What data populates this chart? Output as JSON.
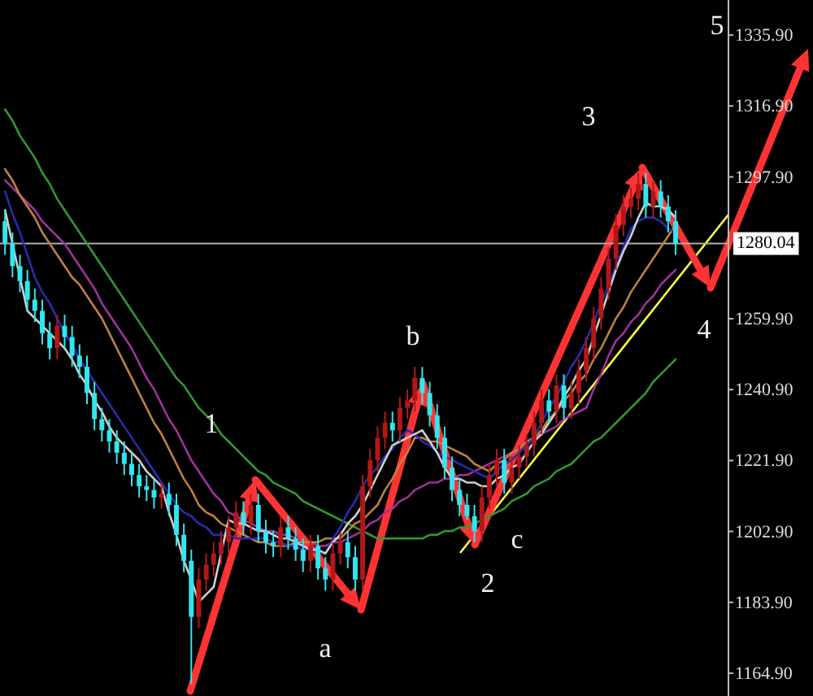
{
  "chart_data": {
    "type": "candlestick",
    "categories": [
      null,
      null,
      null,
      null,
      null,
      null,
      null,
      null,
      null,
      null,
      null,
      null,
      null,
      null,
      null,
      null,
      null,
      null,
      null,
      null,
      null,
      null,
      null,
      null,
      null,
      null,
      null,
      null,
      null,
      null,
      null,
      null,
      null,
      null,
      null,
      null,
      null,
      null,
      null,
      null,
      null,
      null,
      null,
      null,
      null,
      null,
      null,
      null,
      null,
      null,
      null,
      null,
      null,
      null,
      null,
      null,
      null,
      null,
      null,
      null,
      null,
      null,
      null,
      null,
      null,
      null,
      null,
      null,
      null,
      null,
      null,
      null,
      null,
      null,
      null,
      null,
      null,
      null,
      null,
      null,
      null,
      null,
      null,
      null,
      null,
      null,
      null,
      null,
      null,
      null,
      null
    ],
    "ohlc": [
      [
        1286,
        1289,
        1277,
        1280
      ],
      [
        1280,
        1283,
        1271,
        1274
      ],
      [
        1274,
        1277,
        1267,
        1270
      ],
      [
        1270,
        1273,
        1262,
        1265
      ],
      [
        1265,
        1268,
        1259,
        1262
      ],
      [
        1262,
        1265,
        1253,
        1256
      ],
      [
        1256,
        1259,
        1249,
        1252
      ],
      [
        1252,
        1261,
        1249,
        1258
      ],
      [
        1258,
        1261,
        1252,
        1255
      ],
      [
        1255,
        1258,
        1247,
        1250
      ],
      [
        1250,
        1253,
        1244,
        1247
      ],
      [
        1247,
        1250,
        1237,
        1240
      ],
      [
        1240,
        1243,
        1230,
        1233
      ],
      [
        1233,
        1236,
        1227,
        1230
      ],
      [
        1230,
        1233,
        1224,
        1227
      ],
      [
        1227,
        1230,
        1221,
        1224
      ],
      [
        1224,
        1227,
        1218,
        1221
      ],
      [
        1221,
        1224,
        1215,
        1218
      ],
      [
        1218,
        1221,
        1212,
        1215
      ],
      [
        1215,
        1218,
        1211,
        1214
      ],
      [
        1214,
        1217,
        1209,
        1212
      ],
      [
        1212,
        1216,
        1209,
        1213
      ],
      [
        1213,
        1216,
        1207,
        1210
      ],
      [
        1210,
        1213,
        1199,
        1202
      ],
      [
        1202,
        1205,
        1192,
        1195
      ],
      [
        1195,
        1198,
        1162,
        1180
      ],
      [
        1180,
        1193,
        1177,
        1190
      ],
      [
        1190,
        1197,
        1187,
        1194
      ],
      [
        1194,
        1200,
        1191,
        1197
      ],
      [
        1197,
        1203,
        1194,
        1200
      ],
      [
        1200,
        1207,
        1197,
        1204
      ],
      [
        1204,
        1211,
        1201,
        1208
      ],
      [
        1208,
        1211,
        1202,
        1205
      ],
      [
        1205,
        1213,
        1202,
        1210
      ],
      [
        1210,
        1213,
        1200,
        1203
      ],
      [
        1203,
        1206,
        1197,
        1200
      ],
      [
        1200,
        1203,
        1196,
        1199
      ],
      [
        1199,
        1207,
        1196,
        1204
      ],
      [
        1204,
        1207,
        1198,
        1201
      ],
      [
        1201,
        1204,
        1195,
        1198
      ],
      [
        1198,
        1201,
        1192,
        1195
      ],
      [
        1195,
        1202,
        1192,
        1199
      ],
      [
        1199,
        1202,
        1190,
        1193
      ],
      [
        1193,
        1196,
        1187,
        1190
      ],
      [
        1190,
        1200,
        1187,
        1197
      ],
      [
        1197,
        1203,
        1194,
        1200
      ],
      [
        1200,
        1203,
        1193,
        1196
      ],
      [
        1196,
        1199,
        1187,
        1190
      ],
      [
        1190,
        1218,
        1187,
        1215
      ],
      [
        1215,
        1225,
        1212,
        1222
      ],
      [
        1222,
        1231,
        1219,
        1228
      ],
      [
        1228,
        1235,
        1225,
        1232
      ],
      [
        1232,
        1235,
        1227,
        1230
      ],
      [
        1230,
        1239,
        1227,
        1236
      ],
      [
        1236,
        1241,
        1233,
        1238
      ],
      [
        1238,
        1247,
        1235,
        1244
      ],
      [
        1244,
        1247,
        1237,
        1240
      ],
      [
        1240,
        1243,
        1231,
        1234
      ],
      [
        1234,
        1237,
        1225,
        1228
      ],
      [
        1228,
        1231,
        1217,
        1220
      ],
      [
        1220,
        1223,
        1211,
        1214
      ],
      [
        1214,
        1217,
        1207,
        1210
      ],
      [
        1210,
        1213,
        1206,
        1207
      ],
      [
        1207,
        1210,
        1200,
        1203
      ],
      [
        1203,
        1215,
        1200,
        1212
      ],
      [
        1212,
        1221,
        1209,
        1218
      ],
      [
        1218,
        1225,
        1215,
        1222
      ],
      [
        1222,
        1225,
        1213,
        1216
      ],
      [
        1216,
        1223,
        1213,
        1220
      ],
      [
        1220,
        1226,
        1217,
        1223
      ],
      [
        1223,
        1229,
        1220,
        1226
      ],
      [
        1226,
        1235,
        1223,
        1232
      ],
      [
        1232,
        1241,
        1229,
        1238
      ],
      [
        1238,
        1241,
        1232,
        1235
      ],
      [
        1235,
        1245,
        1232,
        1242
      ],
      [
        1242,
        1245,
        1233,
        1236
      ],
      [
        1236,
        1243,
        1233,
        1240
      ],
      [
        1240,
        1249,
        1237,
        1246
      ],
      [
        1246,
        1255,
        1243,
        1252
      ],
      [
        1252,
        1263,
        1249,
        1260
      ],
      [
        1260,
        1271,
        1257,
        1268
      ],
      [
        1268,
        1279,
        1265,
        1276
      ],
      [
        1276,
        1288,
        1273,
        1285
      ],
      [
        1285,
        1293,
        1282,
        1290
      ],
      [
        1290,
        1295,
        1287,
        1292
      ],
      [
        1292,
        1299,
        1289,
        1296
      ],
      [
        1296,
        1299,
        1287,
        1290
      ],
      [
        1290,
        1297,
        1287,
        1294
      ],
      [
        1294,
        1297,
        1287,
        1290
      ],
      [
        1290,
        1293,
        1283,
        1286
      ],
      [
        1286,
        1289,
        1277,
        1280
      ]
    ],
    "colors": [
      "#33e6ee",
      "#33e6ee",
      "#33e6ee",
      "#33e6ee",
      "#33e6ee",
      "#33e6ee",
      "#33e6ee",
      "#b01818",
      "#33e6ee",
      "#33e6ee",
      "#33e6ee",
      "#33e6ee",
      "#33e6ee",
      "#33e6ee",
      "#33e6ee",
      "#33e6ee",
      "#33e6ee",
      "#33e6ee",
      "#33e6ee",
      "#33e6ee",
      "#33e6ee",
      "#b01818",
      "#33e6ee",
      "#33e6ee",
      "#33e6ee",
      "#33e6ee",
      "#b01818",
      "#b01818",
      "#b01818",
      "#b01818",
      "#b01818",
      "#b01818",
      "#33e6ee",
      "#b01818",
      "#33e6ee",
      "#33e6ee",
      "#33e6ee",
      "#b01818",
      "#33e6ee",
      "#33e6ee",
      "#33e6ee",
      "#b01818",
      "#33e6ee",
      "#33e6ee",
      "#b01818",
      "#b01818",
      "#33e6ee",
      "#33e6ee",
      "#b01818",
      "#b01818",
      "#b01818",
      "#b01818",
      "#33e6ee",
      "#b01818",
      "#b01818",
      "#b01818",
      "#33e6ee",
      "#33e6ee",
      "#33e6ee",
      "#33e6ee",
      "#33e6ee",
      "#33e6ee",
      "#33e6ee",
      "#33e6ee",
      "#b01818",
      "#b01818",
      "#b01818",
      "#33e6ee",
      "#b01818",
      "#b01818",
      "#b01818",
      "#b01818",
      "#b01818",
      "#33e6ee",
      "#b01818",
      "#33e6ee",
      "#b01818",
      "#b01818",
      "#b01818",
      "#b01818",
      "#b01818",
      "#b01818",
      "#b01818",
      "#b01818",
      "#b01818",
      "#b01818",
      "#33e6ee",
      "#b01818",
      "#33e6ee",
      "#33e6ee",
      "#33e6ee"
    ],
    "series": [
      {
        "type": "line",
        "color": "#2e9a2e",
        "values": [
          1316,
          1313,
          1309,
          1306,
          1303,
          1299,
          1296,
          1292,
          1289,
          1286,
          1283,
          1280,
          1277,
          1274,
          1271,
          1268,
          1265,
          1262,
          1259,
          1256,
          1253,
          1250,
          1247,
          1244,
          1242,
          1239,
          1236,
          1234,
          1232,
          1229,
          1227,
          1225,
          1223,
          1221,
          1219,
          1218,
          1216,
          1215,
          1214,
          1213,
          1211,
          1210,
          1209,
          1208,
          1207,
          1206,
          1205,
          1204,
          1203,
          1202,
          1201,
          1201,
          1201,
          1201,
          1201,
          1201,
          1201,
          1202,
          1202,
          1203,
          1203,
          1204,
          1204,
          1205,
          1206,
          1207,
          1208,
          1209,
          1211,
          1212,
          1213,
          1215,
          1216,
          1217,
          1219,
          1220,
          1221,
          1223,
          1225,
          1227,
          1228,
          1230,
          1232,
          1234,
          1236,
          1238,
          1240,
          1243,
          1245,
          1247,
          1249
        ]
      },
      {
        "type": "line",
        "color": "#a030a0",
        "values": [
          1297,
          1295,
          1293,
          1291,
          1289,
          1286,
          1284,
          1282,
          1280,
          1277,
          1274,
          1271,
          1268,
          1264,
          1261,
          1258,
          1255,
          1252,
          1248,
          1244,
          1241,
          1237,
          1233,
          1230,
          1226,
          1222,
          1219,
          1216,
          1213,
          1211,
          1208,
          1207,
          1206,
          1205,
          1204,
          1203,
          1203,
          1202,
          1202,
          1201,
          1200,
          1200,
          1199,
          1199,
          1200,
          1200,
          1201,
          1202,
          1203,
          1205,
          1206,
          1208,
          1209,
          1211,
          1212,
          1214,
          1215,
          1216,
          1216,
          1217,
          1217,
          1218,
          1218,
          1219,
          1220,
          1221,
          1222,
          1223,
          1224,
          1225,
          1226,
          1228,
          1229,
          1230,
          1231,
          1233,
          1234,
          1235,
          1236,
          1241,
          1245,
          1250,
          1254,
          1256,
          1259,
          1261,
          1264,
          1266,
          1269,
          1271,
          1273
        ]
      },
      {
        "type": "line",
        "color": "#c08040",
        "values": [
          1300,
          1297,
          1293,
          1290,
          1287,
          1283,
          1280,
          1277,
          1274,
          1271,
          1269,
          1266,
          1263,
          1260,
          1256,
          1252,
          1248,
          1244,
          1240,
          1236,
          1232,
          1229,
          1225,
          1221,
          1217,
          1214,
          1210,
          1208,
          1207,
          1205,
          1204,
          1203,
          1202,
          1201,
          1200,
          1200,
          1199,
          1199,
          1199,
          1200,
          1200,
          1200,
          1200,
          1201,
          1201,
          1201,
          1203,
          1205,
          1206,
          1208,
          1210,
          1214,
          1217,
          1221,
          1224,
          1228,
          1228,
          1227,
          1227,
          1226,
          1225,
          1224,
          1223,
          1221,
          1220,
          1219,
          1221,
          1222,
          1224,
          1225,
          1227,
          1228,
          1230,
          1233,
          1235,
          1238,
          1240,
          1243,
          1245,
          1249,
          1252,
          1256,
          1260,
          1263,
          1267,
          1270,
          1273,
          1276,
          1279,
          1282,
          1285
        ]
      },
      {
        "type": "line",
        "color": "#2a2ab0",
        "values": [
          1294,
          1288,
          1283,
          1277,
          1271,
          1267,
          1264,
          1260,
          1256,
          1253,
          1249,
          1246,
          1243,
          1240,
          1237,
          1234,
          1231,
          1228,
          1225,
          1222,
          1219,
          1216,
          1213,
          1210,
          1208,
          1207,
          1205,
          1204,
          1202,
          1202,
          1202,
          1201,
          1201,
          1201,
          1201,
          1201,
          1200,
          1200,
          1199,
          1199,
          1198,
          1198,
          1197,
          1197,
          1201,
          1204,
          1208,
          1211,
          1215,
          1218,
          1220,
          1223,
          1225,
          1228,
          1230,
          1229,
          1227,
          1226,
          1224,
          1223,
          1222,
          1221,
          1220,
          1219,
          1218,
          1217,
          1219,
          1221,
          1222,
          1224,
          1226,
          1228,
          1232,
          1236,
          1239,
          1243,
          1247,
          1250,
          1254,
          1259,
          1264,
          1269,
          1274,
          1279,
          1284,
          1286,
          1287,
          1287,
          1286,
          1284,
          1283
        ]
      },
      {
        "type": "line",
        "color": "#d0d0d0",
        "values": [
          1289,
          1280,
          1271,
          1262,
          1260,
          1258,
          1256,
          1254,
          1252,
          1249,
          1245,
          1242,
          1238,
          1235,
          1231,
          1228,
          1226,
          1224,
          1222,
          1219,
          1217,
          1215,
          1208,
          1202,
          1195,
          1190,
          1184,
          1186,
          1188,
          1197,
          1206,
          1205,
          1205,
          1204,
          1203,
          1203,
          1202,
          1201,
          1201,
          1200,
          1199,
          1198,
          1198,
          1197,
          1200,
          1202,
          1205,
          1207,
          1210,
          1214,
          1218,
          1222,
          1226,
          1227,
          1228,
          1229,
          1230,
          1227,
          1224,
          1220,
          1217,
          1217,
          1216,
          1216,
          1215,
          1215,
          1217,
          1218,
          1220,
          1221,
          1224,
          1227,
          1229,
          1232,
          1235,
          1239,
          1242,
          1246,
          1249,
          1255,
          1261,
          1267,
          1273,
          1278,
          1282,
          1287,
          1291,
          1290,
          1290,
          1289,
          1287
        ]
      }
    ],
    "annotations": [
      "1",
      "a",
      "b",
      "2",
      "c",
      "3",
      "4",
      "5"
    ],
    "ref_lines": [
      {
        "axis": "y",
        "value": 1280.04,
        "label": "1280.04",
        "color": "#b0b0b0"
      }
    ],
    "ylim": [
      1158.8,
      1345.3
    ],
    "yticks": [
      {
        "value": 1164.9,
        "label": "1164.90"
      },
      {
        "value": 1183.9,
        "label": "1183.90"
      },
      {
        "value": 1202.9,
        "label": "1202.90"
      },
      {
        "value": 1221.9,
        "label": "1221.90"
      },
      {
        "value": 1240.9,
        "label": "1240.90"
      },
      {
        "value": 1259.9,
        "label": "1259.90"
      },
      {
        "value": 1297.9,
        "label": "1297.90"
      },
      {
        "value": 1316.9,
        "label": "1316.90"
      },
      {
        "value": 1335.9,
        "label": "1335.90"
      }
    ],
    "tick_labels": "y"
  }
}
